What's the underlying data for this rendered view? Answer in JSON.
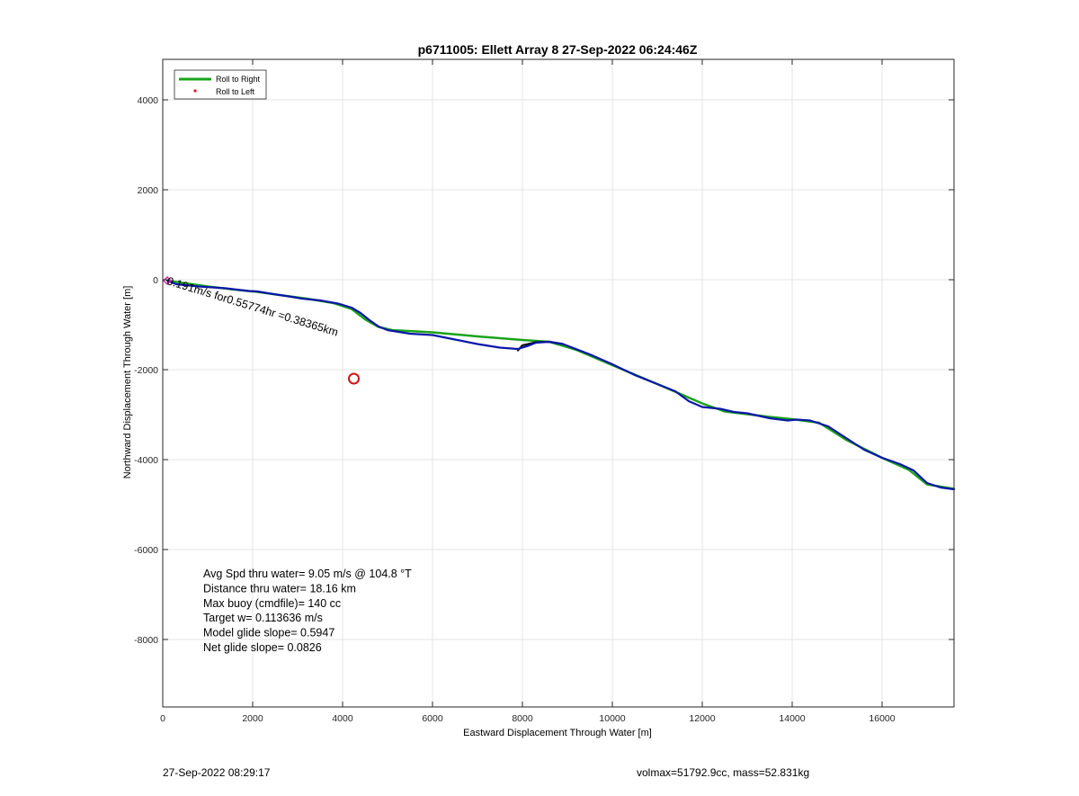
{
  "chart_data": {
    "type": "line",
    "title": "p6711005: Ellett Array 8 27-Sep-2022 06:24:46Z",
    "xlabel": "Eastward Displacement Through Water [m]",
    "ylabel": "Northward Displacement Through Water [m]",
    "xlim": [
      0,
      17600
    ],
    "ylim": [
      -9500,
      4900
    ],
    "xticks": [
      0,
      2000,
      4000,
      6000,
      8000,
      10000,
      12000,
      14000,
      16000
    ],
    "yticks": [
      -8000,
      -6000,
      -4000,
      -2000,
      0,
      2000,
      4000
    ],
    "grid": true,
    "legend_position": "top-left",
    "series": [
      {
        "name": "Roll to Right",
        "color": "#1aa31a",
        "style": "line",
        "points": [
          [
            100,
            -20
          ],
          [
            1000,
            -150
          ],
          [
            1600,
            -220
          ],
          [
            2100,
            -270
          ],
          [
            2600,
            -340
          ],
          [
            3200,
            -420
          ],
          [
            3800,
            -520
          ],
          [
            4200,
            -650
          ],
          [
            4500,
            -880
          ],
          [
            4800,
            -1050
          ],
          [
            5100,
            -1120
          ],
          [
            6000,
            -1170
          ],
          [
            7000,
            -1260
          ],
          [
            8000,
            -1340
          ],
          [
            8600,
            -1380
          ],
          [
            9200,
            -1560
          ],
          [
            10000,
            -1900
          ],
          [
            11000,
            -2320
          ],
          [
            12000,
            -2750
          ],
          [
            12500,
            -2930
          ],
          [
            13500,
            -3050
          ],
          [
            14000,
            -3100
          ],
          [
            14600,
            -3180
          ],
          [
            15200,
            -3560
          ],
          [
            16000,
            -3960
          ],
          [
            16600,
            -4230
          ],
          [
            17000,
            -4550
          ],
          [
            17600,
            -4650
          ]
        ]
      },
      {
        "name": "Roll to Left",
        "color": "#e8141e",
        "style": "dot",
        "points": []
      },
      {
        "name": "",
        "color": "#111111",
        "style": "line",
        "points": [
          [
            7900,
            -1570
          ],
          [
            8000,
            -1460
          ],
          [
            8300,
            -1390
          ],
          [
            8600,
            -1380
          ],
          [
            8900,
            -1430
          ]
        ]
      },
      {
        "name": "",
        "color": "#0a17a8",
        "style": "line",
        "points": [
          [
            100,
            -20
          ],
          [
            300,
            -100
          ],
          [
            800,
            -150
          ],
          [
            1400,
            -190
          ],
          [
            1900,
            -250
          ],
          [
            2100,
            -260
          ],
          [
            2400,
            -310
          ],
          [
            2800,
            -370
          ],
          [
            3100,
            -420
          ],
          [
            3500,
            -460
          ],
          [
            3900,
            -530
          ],
          [
            4200,
            -620
          ],
          [
            4400,
            -740
          ],
          [
            4600,
            -900
          ],
          [
            4800,
            -1040
          ],
          [
            5000,
            -1120
          ],
          [
            5500,
            -1200
          ],
          [
            6000,
            -1230
          ],
          [
            6500,
            -1330
          ],
          [
            7000,
            -1430
          ],
          [
            7500,
            -1510
          ],
          [
            7900,
            -1540
          ],
          [
            8100,
            -1480
          ],
          [
            8300,
            -1400
          ],
          [
            8600,
            -1380
          ],
          [
            8900,
            -1430
          ],
          [
            9500,
            -1660
          ],
          [
            10000,
            -1880
          ],
          [
            10500,
            -2120
          ],
          [
            11000,
            -2320
          ],
          [
            11400,
            -2480
          ],
          [
            11700,
            -2700
          ],
          [
            12000,
            -2830
          ],
          [
            12400,
            -2870
          ],
          [
            12700,
            -2940
          ],
          [
            13000,
            -2970
          ],
          [
            13500,
            -3080
          ],
          [
            13900,
            -3130
          ],
          [
            14100,
            -3110
          ],
          [
            14400,
            -3130
          ],
          [
            14800,
            -3260
          ],
          [
            15200,
            -3520
          ],
          [
            15600,
            -3780
          ],
          [
            16000,
            -3960
          ],
          [
            16400,
            -4100
          ],
          [
            16700,
            -4240
          ],
          [
            17000,
            -4520
          ],
          [
            17300,
            -4620
          ],
          [
            17600,
            -4660
          ]
        ]
      }
    ],
    "markers": [
      {
        "type": "circle",
        "x": 4250,
        "y": -2200,
        "color": "#d11414"
      },
      {
        "type": "diamond",
        "x": 100,
        "y": -20,
        "color": "#cc2aa8"
      }
    ],
    "annotations": {
      "path_label": "0.191m/s for0.55774hr =0.38365km",
      "stats": [
        "Avg Spd thru water=  9.05 m/s @ 104.8 °T",
        "Distance thru water= 18.16 km",
        "Max buoy (cmdfile)= 140 cc",
        "Target w= 0.113636 m/s",
        "Model glide slope= 0.5947",
        "Net glide slope= 0.0826"
      ]
    }
  },
  "footer": {
    "timestamp": "27-Sep-2022 08:29:17",
    "volmax": "volmax=51792.9cc, mass=52.831kg"
  }
}
